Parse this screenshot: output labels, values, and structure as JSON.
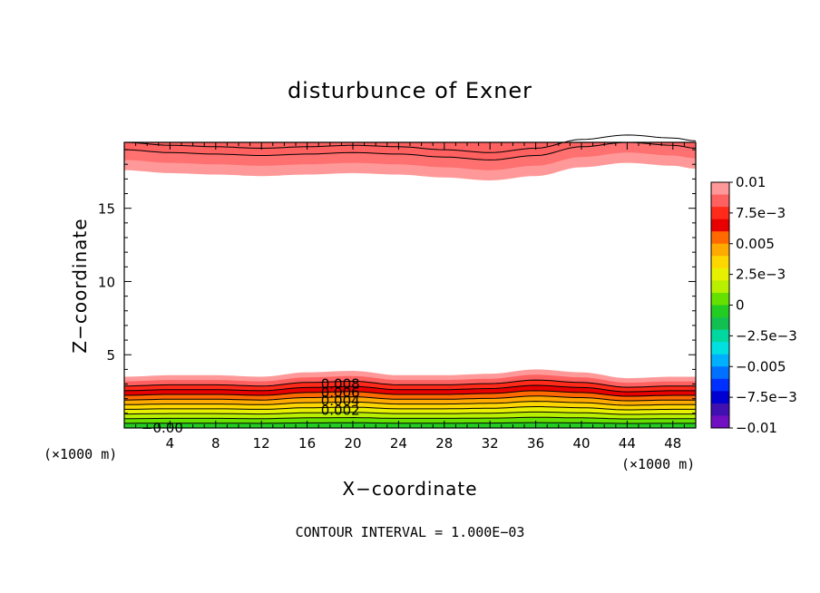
{
  "chart_data": {
    "type": "heatmap",
    "title": "disturbunce of Exner",
    "xlabel": "X−coordinate",
    "ylabel": "Z−coordinate",
    "x_unit_left": "(×1000 m)",
    "x_unit_right": "(×1000 m)",
    "note": "CONTOUR INTERVAL = 1.000E−03",
    "xlim": [
      0,
      50
    ],
    "ylim": [
      0,
      19.5
    ],
    "x_ticks": [
      4,
      8,
      12,
      16,
      20,
      24,
      28,
      32,
      36,
      40,
      44,
      48
    ],
    "x_tick_labels": [
      "4",
      "8",
      "12",
      "16",
      "20",
      "24",
      "28",
      "32",
      "36",
      "40",
      "44",
      "48"
    ],
    "y_ticks": [
      5,
      10,
      15
    ],
    "y_tick_labels": [
      "5",
      "10",
      "15"
    ],
    "colorbar": {
      "range": [
        -0.01,
        0.01
      ],
      "labels": [
        "0.01",
        "7.5e−3",
        "0.005",
        "2.5e−3",
        "0",
        "−2.5e−3",
        "−0.005",
        "−7.5e−3",
        "−0.01"
      ],
      "colors": [
        "#ff9999",
        "#ff6060",
        "#ff2a1a",
        "#e80000",
        "#ff6a00",
        "#ffaa00",
        "#ffd700",
        "#e6f000",
        "#b8f000",
        "#66e000",
        "#22cc22",
        "#11c050",
        "#00d8a0",
        "#00e0e0",
        "#00b0ff",
        "#0070ff",
        "#0030ff",
        "#0000d0",
        "#4010b0",
        "#7010c0"
      ]
    },
    "bottom_layer": {
      "x": [
        0,
        4,
        8,
        12,
        16,
        20,
        24,
        28,
        32,
        36,
        40,
        44,
        48,
        50
      ],
      "top_z": [
        3.5,
        3.6,
        3.6,
        3.5,
        3.8,
        3.9,
        3.6,
        3.6,
        3.7,
        4.0,
        3.8,
        3.4,
        3.5,
        3.5
      ]
    },
    "top_layer": {
      "x": [
        0,
        4,
        8,
        12,
        16,
        20,
        24,
        28,
        32,
        36,
        40,
        44,
        48,
        50
      ],
      "bottom_z": [
        17.6,
        17.4,
        17.3,
        17.2,
        17.3,
        17.4,
        17.3,
        17.1,
        16.9,
        17.2,
        17.8,
        18.1,
        17.9,
        17.7
      ]
    },
    "contour_labels": [
      "0.008",
      "0.006",
      "0.004",
      "0.002",
      "−0.00"
    ]
  }
}
